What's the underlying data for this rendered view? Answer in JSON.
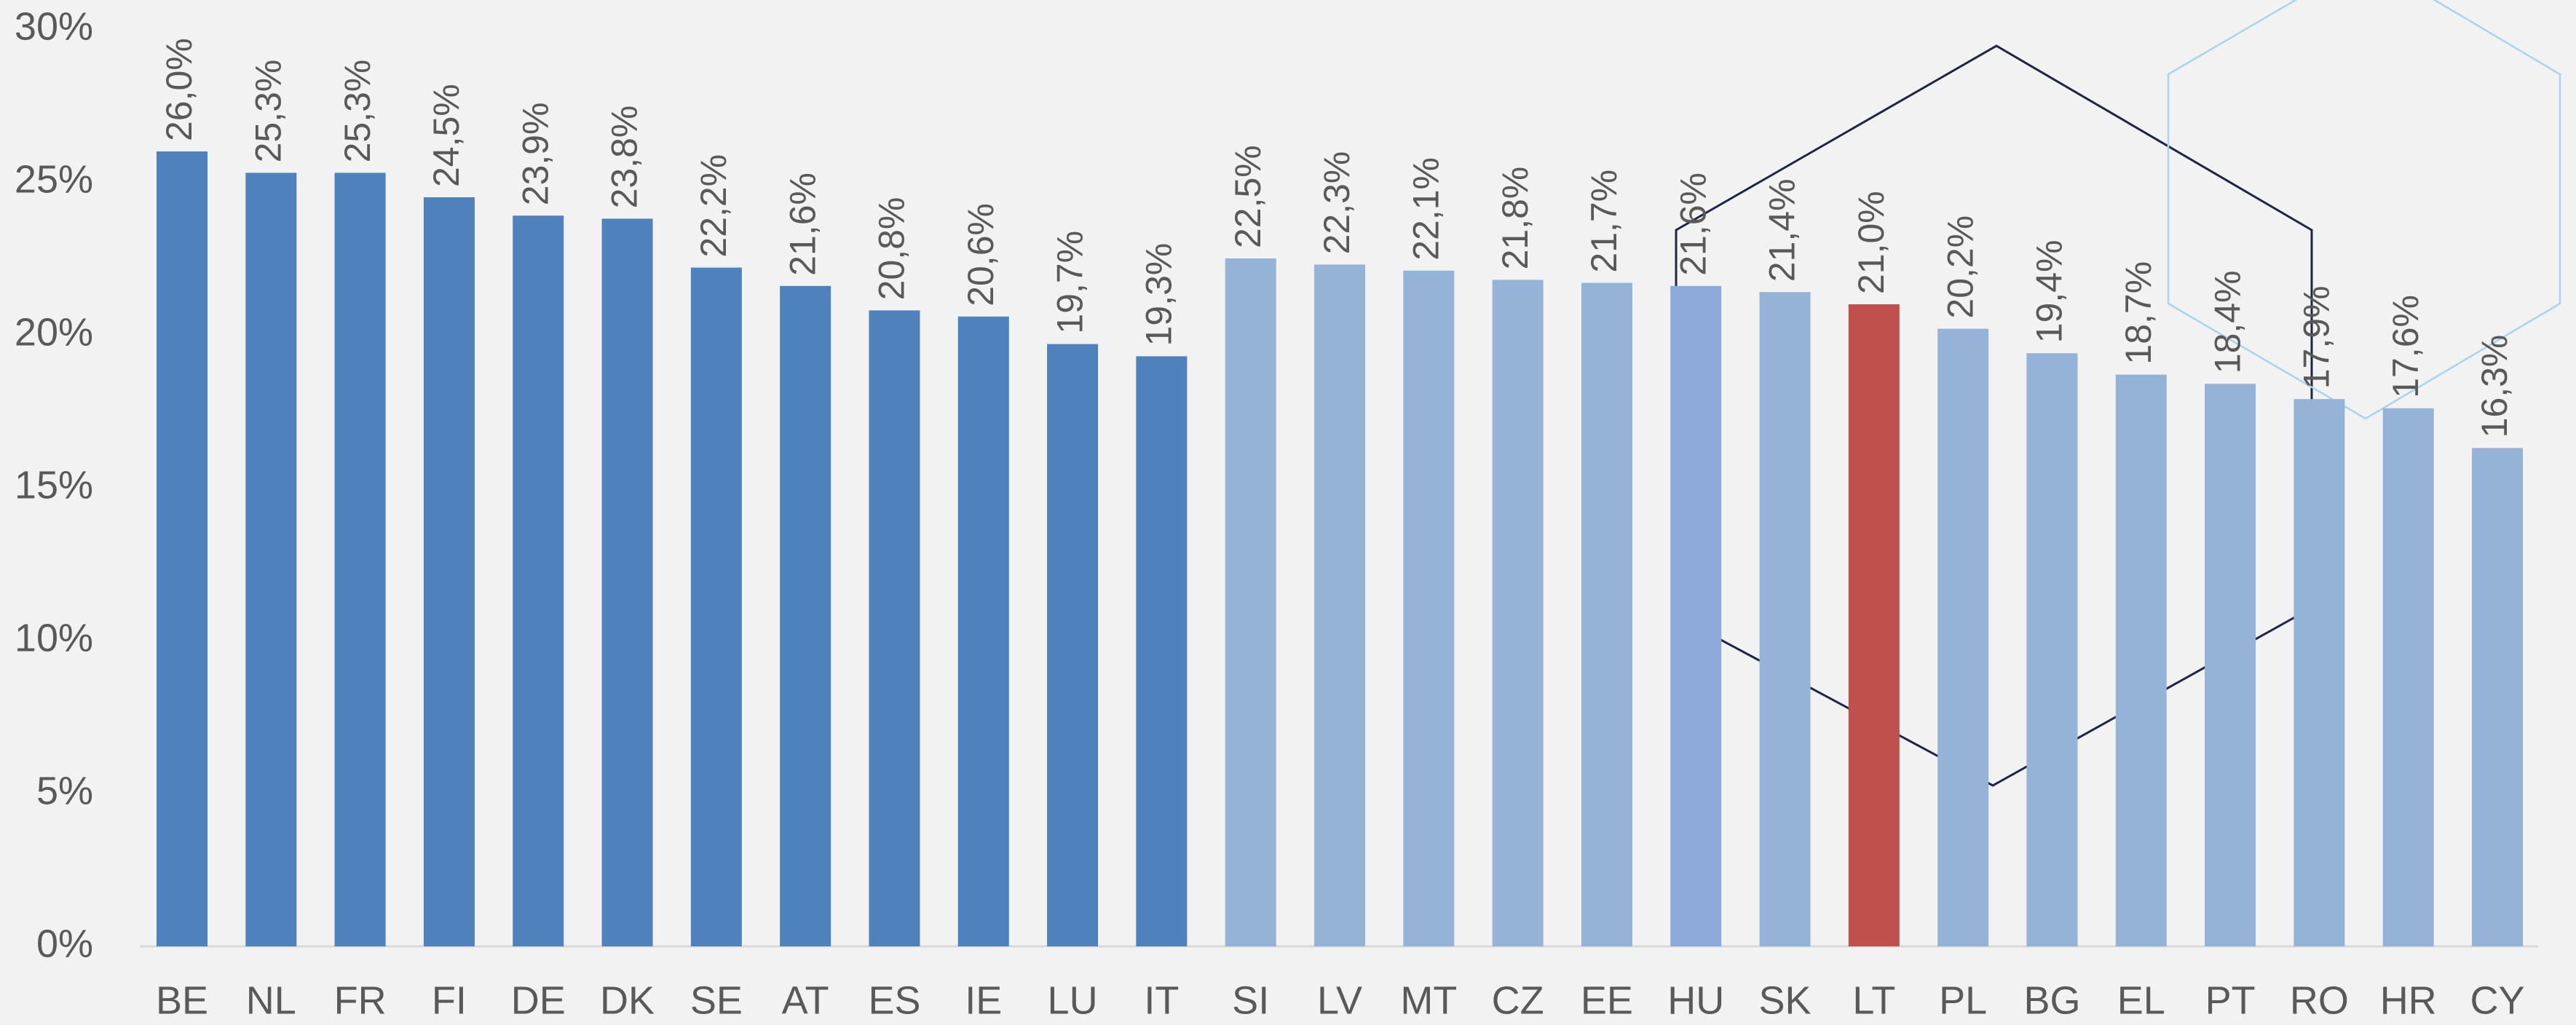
{
  "chart_data": {
    "type": "bar",
    "categories": [
      "BE",
      "NL",
      "FR",
      "FI",
      "DE",
      "DK",
      "SE",
      "AT",
      "ES",
      "IE",
      "LU",
      "IT",
      "SI",
      "LV",
      "MT",
      "CZ",
      "EE",
      "HU",
      "SK",
      "LT",
      "PL",
      "BG",
      "EL",
      "PT",
      "RO",
      "HR",
      "CY"
    ],
    "values": [
      26.0,
      25.3,
      25.3,
      24.5,
      23.9,
      23.8,
      22.2,
      21.6,
      20.8,
      20.6,
      19.7,
      19.3,
      22.5,
      22.3,
      22.1,
      21.8,
      21.7,
      21.6,
      21.4,
      21.0,
      20.2,
      19.4,
      18.7,
      18.4,
      17.9,
      17.6,
      16.3
    ],
    "value_labels": [
      "26,0%",
      "25,3%",
      "25,3%",
      "24,5%",
      "23,9%",
      "23,8%",
      "22,2%",
      "21,6%",
      "20,8%",
      "20,6%",
      "19,7%",
      "19,3%",
      "22,5%",
      "22,3%",
      "22,1%",
      "21,8%",
      "21,7%",
      "21,6%",
      "21,4%",
      "21,0%",
      "20,2%",
      "19,4%",
      "18,7%",
      "18,4%",
      "17,9%",
      "17,6%",
      "16,3%"
    ],
    "colors": [
      "#4f81bd",
      "#4f81bd",
      "#4f81bd",
      "#4f81bd",
      "#4f81bd",
      "#4f81bd",
      "#4f81bd",
      "#4f81bd",
      "#4f81bd",
      "#4f81bd",
      "#4f81bd",
      "#4f81bd",
      "#95b3d7",
      "#95b3d7",
      "#95b3d7",
      "#95b3d7",
      "#95b3d7",
      "#8eaadb",
      "#95b3d7",
      "#c0504d",
      "#95b3d7",
      "#95b3d7",
      "#95b3d7",
      "#95b3d7",
      "#95b3d7",
      "#95b3d7",
      "#95b3d7"
    ],
    "ylim": [
      0,
      30
    ],
    "yticks": [
      {
        "value": 0,
        "label": "0%"
      },
      {
        "value": 5,
        "label": "5%"
      },
      {
        "value": 10,
        "label": "10%"
      },
      {
        "value": 15,
        "label": "15%"
      },
      {
        "value": 20,
        "label": "20%"
      },
      {
        "value": 25,
        "label": "25%"
      },
      {
        "value": 30,
        "label": "30%"
      }
    ],
    "grid": false
  }
}
